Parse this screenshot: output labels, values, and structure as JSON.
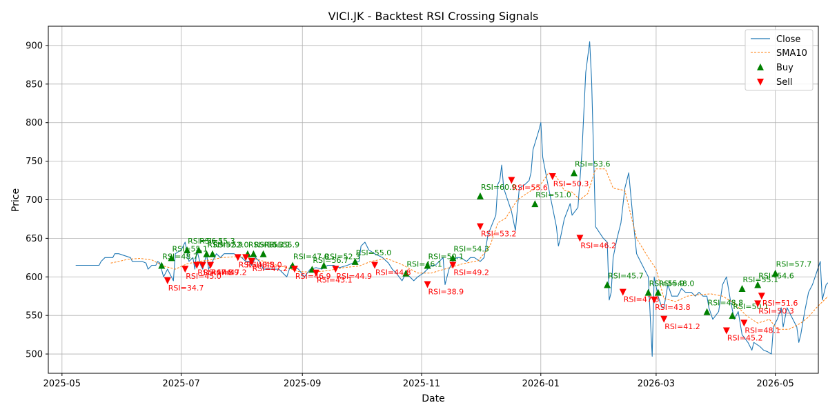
{
  "chart_data": {
    "type": "line",
    "title": "VICI.JK - Backtest RSI Crossing Signals",
    "xlabel": "Date",
    "ylabel": "Price",
    "xlim": [
      "2025-04-24",
      "2026-05-23"
    ],
    "ylim": [
      475,
      925
    ],
    "x_ticks": [
      "2025-05",
      "2025-07",
      "2025-09",
      "2025-11",
      "2026-01",
      "2026-03",
      "2026-05"
    ],
    "y_ticks": [
      500,
      550,
      600,
      650,
      700,
      750,
      800,
      850,
      900
    ],
    "grid": true,
    "legend_position": "top-right",
    "colors": {
      "close": "#1f77b4",
      "sma": "#ff7f0e",
      "buy": "#008000",
      "sell": "#ff0000"
    },
    "legend": {
      "close": "Close",
      "sma": "SMA10",
      "buy": "Buy",
      "sell": "Sell"
    },
    "close": [
      [
        "2025-05-08",
        615
      ],
      [
        "2025-05-20",
        615
      ],
      [
        "2025-05-21",
        620
      ],
      [
        "2025-05-23",
        625
      ],
      [
        "2025-05-27",
        625
      ],
      [
        "2025-05-28",
        630
      ],
      [
        "2025-05-30",
        630
      ],
      [
        "2025-06-05",
        625
      ],
      [
        "2025-06-06",
        620
      ],
      [
        "2025-06-11",
        620
      ],
      [
        "2025-06-13",
        618
      ],
      [
        "2025-06-14",
        610
      ],
      [
        "2025-06-16",
        615
      ],
      [
        "2025-06-18",
        615
      ],
      [
        "2025-06-19",
        620
      ],
      [
        "2025-06-20",
        618
      ],
      [
        "2025-06-22",
        600
      ],
      [
        "2025-06-24",
        610
      ],
      [
        "2025-06-26",
        600
      ],
      [
        "2025-06-27",
        595
      ],
      [
        "2025-06-28",
        630
      ],
      [
        "2025-07-01",
        635
      ],
      [
        "2025-07-03",
        645
      ],
      [
        "2025-07-05",
        620
      ],
      [
        "2025-07-07",
        625
      ],
      [
        "2025-07-08",
        610
      ],
      [
        "2025-07-09",
        635
      ],
      [
        "2025-07-11",
        615
      ],
      [
        "2025-07-12",
        610
      ],
      [
        "2025-07-14",
        630
      ],
      [
        "2025-07-15",
        610
      ],
      [
        "2025-07-17",
        620
      ],
      [
        "2025-07-19",
        630
      ],
      [
        "2025-07-21",
        625
      ],
      [
        "2025-07-23",
        630
      ],
      [
        "2025-07-28",
        630
      ],
      [
        "2025-08-01",
        625
      ],
      [
        "2025-08-03",
        620
      ],
      [
        "2025-08-05",
        620
      ],
      [
        "2025-08-06",
        615
      ],
      [
        "2025-08-08",
        625
      ],
      [
        "2025-08-10",
        620
      ],
      [
        "2025-08-12",
        610
      ],
      [
        "2025-08-14",
        610
      ],
      [
        "2025-08-18",
        610
      ],
      [
        "2025-08-20",
        610
      ],
      [
        "2025-08-22",
        605
      ],
      [
        "2025-08-24",
        600
      ],
      [
        "2025-08-26",
        615
      ],
      [
        "2025-08-30",
        610
      ],
      [
        "2025-09-02",
        600
      ],
      [
        "2025-09-05",
        610
      ],
      [
        "2025-09-08",
        612
      ],
      [
        "2025-09-11",
        610
      ],
      [
        "2025-09-14",
        615
      ],
      [
        "2025-09-17",
        615
      ],
      [
        "2025-09-20",
        612
      ],
      [
        "2025-09-24",
        615
      ],
      [
        "2025-09-27",
        618
      ],
      [
        "2025-09-30",
        620
      ],
      [
        "2025-10-01",
        640
      ],
      [
        "2025-10-03",
        645
      ],
      [
        "2025-10-05",
        635
      ],
      [
        "2025-10-08",
        630
      ],
      [
        "2025-10-12",
        625
      ],
      [
        "2025-10-15",
        618
      ],
      [
        "2025-10-17",
        610
      ],
      [
        "2025-10-19",
        605
      ],
      [
        "2025-10-22",
        595
      ],
      [
        "2025-10-24",
        605
      ],
      [
        "2025-10-26",
        600
      ],
      [
        "2025-10-28",
        595
      ],
      [
        "2025-10-30",
        600
      ],
      [
        "2025-11-02",
        605
      ],
      [
        "2025-11-04",
        610
      ],
      [
        "2025-11-06",
        615
      ],
      [
        "2025-11-08",
        615
      ],
      [
        "2025-11-10",
        620
      ],
      [
        "2025-11-12",
        625
      ],
      [
        "2025-11-13",
        590
      ],
      [
        "2025-11-15",
        610
      ],
      [
        "2025-11-17",
        620
      ],
      [
        "2025-11-19",
        625
      ],
      [
        "2025-11-21",
        625
      ],
      [
        "2025-11-24",
        620
      ],
      [
        "2025-11-26",
        625
      ],
      [
        "2025-11-28",
        625
      ],
      [
        "2025-12-01",
        620
      ],
      [
        "2025-12-03",
        625
      ],
      [
        "2025-12-05",
        655
      ],
      [
        "2025-12-09",
        680
      ],
      [
        "2025-12-10",
        720
      ],
      [
        "2025-12-11",
        725
      ],
      [
        "2025-12-12",
        745
      ],
      [
        "2025-12-13",
        715
      ],
      [
        "2025-12-15",
        700
      ],
      [
        "2025-12-17",
        685
      ],
      [
        "2025-12-19",
        660
      ],
      [
        "2025-12-21",
        715
      ],
      [
        "2025-12-24",
        720
      ],
      [
        "2025-12-26",
        725
      ],
      [
        "2025-12-27",
        735
      ],
      [
        "2025-12-28",
        765
      ],
      [
        "2025-12-31",
        790
      ],
      [
        "2026-01-01",
        800
      ],
      [
        "2026-01-02",
        755
      ],
      [
        "2026-01-05",
        715
      ],
      [
        "2026-01-07",
        690
      ],
      [
        "2026-01-09",
        665
      ],
      [
        "2026-01-10",
        640
      ],
      [
        "2026-01-11",
        650
      ],
      [
        "2026-01-13",
        675
      ],
      [
        "2026-01-16",
        695
      ],
      [
        "2026-01-17",
        680
      ],
      [
        "2026-01-20",
        690
      ],
      [
        "2026-01-22",
        760
      ],
      [
        "2026-01-24",
        865
      ],
      [
        "2026-01-26",
        905
      ],
      [
        "2026-01-27",
        855
      ],
      [
        "2026-01-29",
        665
      ],
      [
        "2026-02-02",
        650
      ],
      [
        "2026-02-04",
        645
      ],
      [
        "2026-02-05",
        570
      ],
      [
        "2026-02-06",
        580
      ],
      [
        "2026-02-07",
        625
      ],
      [
        "2026-02-09",
        650
      ],
      [
        "2026-02-11",
        670
      ],
      [
        "2026-02-13",
        715
      ],
      [
        "2026-02-15",
        735
      ],
      [
        "2026-02-17",
        680
      ],
      [
        "2026-02-19",
        630
      ],
      [
        "2026-02-21",
        620
      ],
      [
        "2026-02-23",
        610
      ],
      [
        "2026-02-25",
        600
      ],
      [
        "2026-02-27",
        497
      ],
      [
        "2026-02-28",
        600
      ],
      [
        "2026-03-02",
        575
      ],
      [
        "2026-03-04",
        560
      ],
      [
        "2026-03-05",
        560
      ],
      [
        "2026-03-07",
        590
      ],
      [
        "2026-03-09",
        575
      ],
      [
        "2026-03-12",
        575
      ],
      [
        "2026-03-14",
        585
      ],
      [
        "2026-03-16",
        580
      ],
      [
        "2026-03-19",
        580
      ],
      [
        "2026-03-21",
        575
      ],
      [
        "2026-03-23",
        580
      ],
      [
        "2026-03-25",
        575
      ],
      [
        "2026-03-27",
        575
      ],
      [
        "2026-03-28",
        560
      ],
      [
        "2026-03-30",
        545
      ],
      [
        "2026-04-02",
        555
      ],
      [
        "2026-04-04",
        590
      ],
      [
        "2026-04-06",
        600
      ],
      [
        "2026-04-08",
        570
      ],
      [
        "2026-04-10",
        545
      ],
      [
        "2026-04-12",
        555
      ],
      [
        "2026-04-14",
        525
      ],
      [
        "2026-04-17",
        515
      ],
      [
        "2026-04-19",
        505
      ],
      [
        "2026-04-20",
        515
      ],
      [
        "2026-04-23",
        510
      ],
      [
        "2026-04-25",
        505
      ],
      [
        "2026-04-27",
        503
      ],
      [
        "2026-04-29",
        500
      ],
      [
        "2026-04-30",
        535
      ],
      [
        "2026-05-02",
        545
      ],
      [
        "2026-05-04",
        560
      ],
      [
        "2026-05-05",
        535
      ],
      [
        "2026-05-07",
        560
      ],
      [
        "2026-05-09",
        550
      ],
      [
        "2026-05-12",
        535
      ],
      [
        "2026-05-13",
        515
      ],
      [
        "2026-05-14",
        525
      ],
      [
        "2026-05-16",
        555
      ],
      [
        "2026-05-18",
        580
      ],
      [
        "2026-05-20",
        590
      ],
      [
        "2026-05-22",
        605
      ],
      [
        "2026-05-24",
        620
      ],
      [
        "2026-05-25",
        570
      ],
      [
        "2026-05-27",
        590
      ],
      [
        "2026-05-29",
        595
      ],
      [
        "2026-06-01",
        570
      ],
      [
        "2026-06-03",
        590
      ],
      [
        "2026-06-05",
        595
      ],
      [
        "2026-06-07",
        600
      ],
      [
        "2026-06-09",
        595
      ],
      [
        "2026-06-11",
        595
      ],
      [
        "2026-06-13",
        605
      ]
    ],
    "sma10": [
      [
        "2025-05-26",
        618
      ],
      [
        "2025-05-30",
        620
      ],
      [
        "2025-06-04",
        623
      ],
      [
        "2025-06-10",
        624
      ],
      [
        "2025-06-16",
        622
      ],
      [
        "2025-06-22",
        614
      ],
      [
        "2025-06-28",
        610
      ],
      [
        "2025-07-04",
        617
      ],
      [
        "2025-07-10",
        620
      ],
      [
        "2025-07-16",
        622
      ],
      [
        "2025-07-22",
        625
      ],
      [
        "2025-07-28",
        626
      ],
      [
        "2025-08-04",
        625
      ],
      [
        "2025-08-10",
        622
      ],
      [
        "2025-08-16",
        617
      ],
      [
        "2025-08-24",
        612
      ],
      [
        "2025-08-30",
        607
      ],
      [
        "2025-09-06",
        606
      ],
      [
        "2025-09-14",
        608
      ],
      [
        "2025-09-22",
        612
      ],
      [
        "2025-09-30",
        614
      ],
      [
        "2025-10-06",
        620
      ],
      [
        "2025-10-14",
        624
      ],
      [
        "2025-10-22",
        616
      ],
      [
        "2025-10-30",
        605
      ],
      [
        "2025-11-06",
        605
      ],
      [
        "2025-11-14",
        611
      ],
      [
        "2025-11-22",
        617
      ],
      [
        "2025-11-30",
        621
      ],
      [
        "2025-12-06",
        640
      ],
      [
        "2025-12-10",
        670
      ],
      [
        "2025-12-14",
        676
      ],
      [
        "2025-12-20",
        700
      ],
      [
        "2025-12-26",
        710
      ],
      [
        "2026-01-01",
        720
      ],
      [
        "2026-01-05",
        735
      ],
      [
        "2026-01-09",
        730
      ],
      [
        "2026-01-13",
        712
      ],
      [
        "2026-01-17",
        710
      ],
      [
        "2026-01-21",
        700
      ],
      [
        "2026-01-25",
        708
      ],
      [
        "2026-01-29",
        740
      ],
      [
        "2026-02-03",
        740
      ],
      [
        "2026-02-07",
        715
      ],
      [
        "2026-02-13",
        712
      ],
      [
        "2026-02-19",
        650
      ],
      [
        "2026-02-25",
        625
      ],
      [
        "2026-03-01",
        610
      ],
      [
        "2026-03-05",
        572
      ],
      [
        "2026-03-11",
        568
      ],
      [
        "2026-03-17",
        575
      ],
      [
        "2026-03-23",
        577
      ],
      [
        "2026-03-29",
        578
      ],
      [
        "2026-04-04",
        575
      ],
      [
        "2026-04-10",
        566
      ],
      [
        "2026-04-16",
        550
      ],
      [
        "2026-04-22",
        540
      ],
      [
        "2026-04-28",
        545
      ],
      [
        "2026-05-02",
        532
      ],
      [
        "2026-05-08",
        532
      ],
      [
        "2026-05-14",
        540
      ],
      [
        "2026-05-18",
        548
      ],
      [
        "2026-05-22",
        560
      ],
      [
        "2026-05-28",
        575
      ],
      [
        "2026-06-03",
        585
      ],
      [
        "2026-06-09",
        582
      ],
      [
        "2026-06-13",
        588
      ]
    ],
    "buy_signals": [
      [
        "2025-06-21",
        615,
        "RSI=48.7"
      ],
      [
        "2025-06-26",
        625,
        "RSI=55.1"
      ],
      [
        "2025-07-04",
        635,
        "RSI=56.1"
      ],
      [
        "2025-07-10",
        635,
        "RSI=55.3"
      ],
      [
        "2025-07-14",
        630,
        "RSI=52.9"
      ],
      [
        "2025-07-17",
        630,
        "RSI=52.0"
      ],
      [
        "2025-08-04",
        630,
        "RSI=56.3"
      ],
      [
        "2025-08-07",
        630,
        "RSI=55.9"
      ],
      [
        "2025-08-12",
        630,
        "RSI=55.9"
      ],
      [
        "2025-08-27",
        615,
        "RSI=47.0"
      ],
      [
        "2025-09-06",
        610,
        "RSI=56.7"
      ],
      [
        "2025-09-12",
        615,
        "RSI=52.3"
      ],
      [
        "2025-09-28",
        620,
        "RSI=55.0"
      ],
      [
        "2025-10-24",
        605,
        "RSI=46.1"
      ],
      [
        "2025-11-04",
        615,
        "RSI=50.1"
      ],
      [
        "2025-11-17",
        625,
        "RSI=54.3"
      ],
      [
        "2025-12-01",
        705,
        "RSI=60.9"
      ],
      [
        "2025-12-29",
        695,
        "RSI=51.0"
      ],
      [
        "2026-01-18",
        735,
        "RSI=53.6"
      ],
      [
        "2026-02-04",
        590,
        "RSI=45.7"
      ],
      [
        "2026-02-25",
        580,
        "RSI=55.9"
      ],
      [
        "2026-03-02",
        580,
        "RSI=48.0"
      ],
      [
        "2026-03-27",
        555,
        "RSI=48.8"
      ],
      [
        "2026-04-09",
        550,
        "RSI=50.1"
      ],
      [
        "2026-04-14",
        585,
        "RSI=55.1"
      ],
      [
        "2026-04-22",
        590,
        "RSI=54.6"
      ],
      [
        "2026-05-01",
        605,
        "RSI=57.7"
      ]
    ],
    "sell_signals": [
      [
        "2025-06-24",
        595,
        "RSI=34.7"
      ],
      [
        "2025-07-03",
        610,
        "RSI=45.0"
      ],
      [
        "2025-07-09",
        615,
        "RSI=47.8"
      ],
      [
        "2025-07-12",
        615,
        "RSI=46.9"
      ],
      [
        "2025-07-16",
        615,
        "RSI=47.2"
      ],
      [
        "2025-07-30",
        625,
        "RSI=48.5"
      ],
      [
        "2025-08-03",
        625,
        "RSI=48.0"
      ],
      [
        "2025-08-06",
        620,
        "RSI=47.2"
      ],
      [
        "2025-08-28",
        610,
        "RSI=46.9"
      ],
      [
        "2025-09-08",
        605,
        "RSI=43.1"
      ],
      [
        "2025-09-18",
        610,
        "RSI=44.9"
      ],
      [
        "2025-10-08",
        615,
        "RSI=44.8"
      ],
      [
        "2025-11-04",
        590,
        "RSI=38.9"
      ],
      [
        "2025-11-17",
        615,
        "RSI=49.2"
      ],
      [
        "2025-12-01",
        665,
        "RSI=53.2"
      ],
      [
        "2025-12-17",
        725,
        "RSI=55.6"
      ],
      [
        "2026-01-07",
        730,
        "RSI=50.3"
      ],
      [
        "2026-01-21",
        650,
        "RSI=46.2"
      ],
      [
        "2026-02-12",
        580,
        "RSI=47.8"
      ],
      [
        "2026-02-28",
        570,
        "RSI=43.8"
      ],
      [
        "2026-03-05",
        545,
        "RSI=41.2"
      ],
      [
        "2026-04-06",
        530,
        "RSI=45.2"
      ],
      [
        "2026-04-15",
        540,
        "RSI=48.1"
      ],
      [
        "2026-04-22",
        565,
        "RSI=50.3"
      ],
      [
        "2026-04-24",
        575,
        "RSI=51.6"
      ]
    ]
  }
}
